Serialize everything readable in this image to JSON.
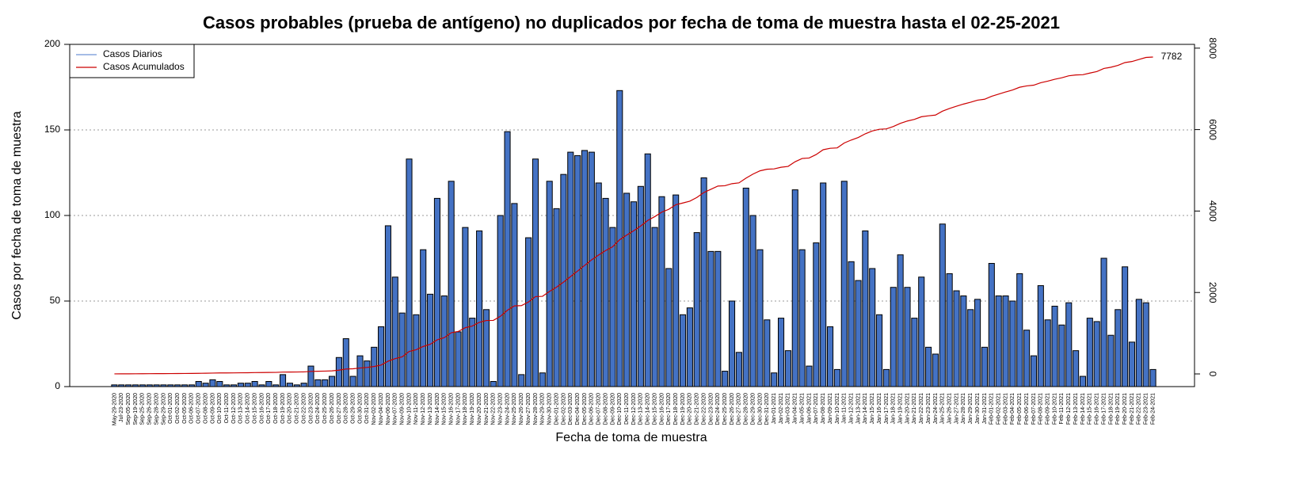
{
  "chart_data": {
    "type": "bar",
    "title": "Casos probables (prueba de antígeno) no duplicados por fecha de toma de muestra hasta el 02-25-2021",
    "x_label": "Fecha de toma de muestra",
    "y_label": "Casos por fecha de toma de muestra",
    "categories": [
      "May-29-2020",
      "Jul-23-2020",
      "Sep-05-2020",
      "Sep-19-2020",
      "Sep-25-2020",
      "Sep-26-2020",
      "Sep-28-2020",
      "Sep-29-2020",
      "Oct-01-2020",
      "Oct-02-2020",
      "Oct-05-2020",
      "Oct-06-2020",
      "Oct-07-2020",
      "Oct-08-2020",
      "Oct-09-2020",
      "Oct-10-2020",
      "Oct-11-2020",
      "Oct-12-2020",
      "Oct-13-2020",
      "Oct-14-2020",
      "Oct-15-2020",
      "Oct-16-2020",
      "Oct-17-2020",
      "Oct-18-2020",
      "Oct-19-2020",
      "Oct-20-2020",
      "Oct-21-2020",
      "Oct-22-2020",
      "Oct-23-2020",
      "Oct-24-2020",
      "Oct-25-2020",
      "Oct-26-2020",
      "Oct-27-2020",
      "Oct-28-2020",
      "Oct-29-2020",
      "Oct-30-2020",
      "Oct-31-2020",
      "Nov-02-2020",
      "Nov-04-2020",
      "Nov-06-2020",
      "Nov-07-2020",
      "Nov-09-2020",
      "Nov-10-2020",
      "Nov-11-2020",
      "Nov-12-2020",
      "Nov-13-2020",
      "Nov-14-2020",
      "Nov-15-2020",
      "Nov-16-2020",
      "Nov-17-2020",
      "Nov-18-2020",
      "Nov-19-2020",
      "Nov-20-2020",
      "Nov-21-2020",
      "Nov-22-2020",
      "Nov-23-2020",
      "Nov-24-2020",
      "Nov-25-2020",
      "Nov-26-2020",
      "Nov-27-2020",
      "Nov-28-2020",
      "Nov-29-2020",
      "Nov-30-2020",
      "Dec-01-2020",
      "Dec-02-2020",
      "Dec-03-2020",
      "Dec-04-2020",
      "Dec-05-2020",
      "Dec-06-2020",
      "Dec-07-2020",
      "Dec-08-2020",
      "Dec-09-2020",
      "Dec-10-2020",
      "Dec-11-2020",
      "Dec-12-2020",
      "Dec-13-2020",
      "Dec-14-2020",
      "Dec-15-2020",
      "Dec-16-2020",
      "Dec-17-2020",
      "Dec-18-2020",
      "Dec-19-2020",
      "Dec-20-2020",
      "Dec-21-2020",
      "Dec-22-2020",
      "Dec-23-2020",
      "Dec-24-2020",
      "Dec-25-2020",
      "Dec-26-2020",
      "Dec-27-2020",
      "Dec-28-2020",
      "Dec-29-2020",
      "Dec-30-2020",
      "Dec-31-2020",
      "Jan-01-2021",
      "Jan-02-2021",
      "Jan-03-2021",
      "Jan-04-2021",
      "Jan-05-2021",
      "Jan-06-2021",
      "Jan-07-2021",
      "Jan-08-2021",
      "Jan-09-2021",
      "Jan-10-2021",
      "Jan-11-2021",
      "Jan-12-2021",
      "Jan-13-2021",
      "Jan-14-2021",
      "Jan-15-2021",
      "Jan-16-2021",
      "Jan-17-2021",
      "Jan-18-2021",
      "Jan-19-2021",
      "Jan-20-2021",
      "Jan-21-2021",
      "Jan-22-2021",
      "Jan-23-2021",
      "Jan-24-2021",
      "Jan-25-2021",
      "Jan-26-2021",
      "Jan-27-2021",
      "Jan-28-2021",
      "Jan-29-2021",
      "Jan-30-2021",
      "Jan-31-2021",
      "Feb-01-2021",
      "Feb-02-2021",
      "Feb-03-2021",
      "Feb-04-2021",
      "Feb-05-2021",
      "Feb-06-2021",
      "Feb-07-2021",
      "Feb-08-2021",
      "Feb-09-2021",
      "Feb-10-2021",
      "Feb-11-2021",
      "Feb-12-2021",
      "Feb-13-2021",
      "Feb-14-2021",
      "Feb-15-2021",
      "Feb-16-2021",
      "Feb-17-2021",
      "Feb-18-2021",
      "Feb-19-2021",
      "Feb-20-2021",
      "Feb-21-2021",
      "Feb-22-2021",
      "Feb-23-2021",
      "Feb-24-2021"
    ],
    "series": [
      {
        "name": "Casos Diarios",
        "color": "#4472c4",
        "legend_color": "#6f93d6",
        "values": [
          1,
          1,
          1,
          1,
          1,
          1,
          1,
          1,
          1,
          1,
          1,
          1,
          3,
          2,
          4,
          3,
          1,
          1,
          2,
          2,
          3,
          1,
          3,
          1,
          7,
          2,
          1,
          2,
          12,
          4,
          4,
          6,
          17,
          28,
          6,
          18,
          15,
          23,
          35,
          94,
          64,
          43,
          133,
          42,
          80,
          54,
          110,
          53,
          120,
          32,
          93,
          40,
          91,
          45,
          3,
          100,
          149,
          107,
          7,
          87,
          133,
          8,
          120,
          104,
          124,
          137,
          135,
          138,
          137,
          119,
          110,
          93,
          173,
          113,
          108,
          117,
          136,
          93,
          111,
          69,
          112,
          42,
          46,
          90,
          122,
          79,
          79,
          9,
          50,
          20,
          116,
          100,
          80,
          39,
          8,
          40,
          21,
          115,
          80,
          12,
          84,
          119,
          35,
          10,
          120,
          73,
          62,
          91,
          69,
          42,
          10,
          58,
          77,
          58,
          40,
          64,
          23,
          19,
          95,
          66,
          56,
          53,
          45,
          51,
          23,
          72,
          53,
          53,
          50,
          66,
          33,
          18,
          59,
          39,
          47,
          36,
          49,
          21,
          6,
          40,
          38,
          75,
          30,
          45,
          70,
          26,
          51,
          49,
          10
        ]
      },
      {
        "name": "Casos Acumulados",
        "color": "#cc0000",
        "axis": "y2",
        "values": [
          1,
          2,
          3,
          4,
          5,
          6,
          7,
          8,
          9,
          10,
          11,
          12,
          15,
          17,
          21,
          24,
          25,
          26,
          28,
          30,
          33,
          34,
          37,
          38,
          45,
          47,
          48,
          50,
          62,
          66,
          70,
          76,
          93,
          121,
          127,
          145,
          160,
          183,
          218,
          312,
          376,
          419,
          552,
          594,
          674,
          728,
          838,
          891,
          1011,
          1043,
          1136,
          1176,
          1267,
          1312,
          1315,
          1415,
          1564,
          1671,
          1678,
          1765,
          1898,
          1906,
          2026,
          2130,
          2254,
          2391,
          2526,
          2664,
          2801,
          2920,
          3030,
          3123,
          3296,
          3409,
          3517,
          3634,
          3770,
          3863,
          3974,
          4043,
          4155,
          4197,
          4243,
          4333,
          4455,
          4534,
          4613,
          4622,
          4672,
          4692,
          4808,
          4908,
          4988,
          5027,
          5035,
          5075,
          5096,
          5211,
          5291,
          5303,
          5387,
          5506,
          5541,
          5551,
          5671,
          5744,
          5806,
          5897,
          5966,
          6008,
          6018,
          6076,
          6153,
          6211,
          6251,
          6315,
          6338,
          6357,
          6452,
          6518,
          6574,
          6627,
          6672,
          6723,
          6746,
          6818,
          6871,
          6924,
          6974,
          7040,
          7073,
          7091,
          7150,
          7189,
          7236,
          7272,
          7321,
          7342,
          7348,
          7388,
          7426,
          7501,
          7531,
          7576,
          7646,
          7672,
          7723,
          7772,
          7782
        ]
      }
    ],
    "ylim": [
      0,
      200
    ],
    "yticks": [
      0,
      50,
      100,
      150,
      200
    ],
    "y2lim": [
      -311,
      8093
    ],
    "y2ticks": [
      0,
      2000,
      4000,
      6000,
      8000
    ],
    "grid": true,
    "legend": "top-left"
  }
}
